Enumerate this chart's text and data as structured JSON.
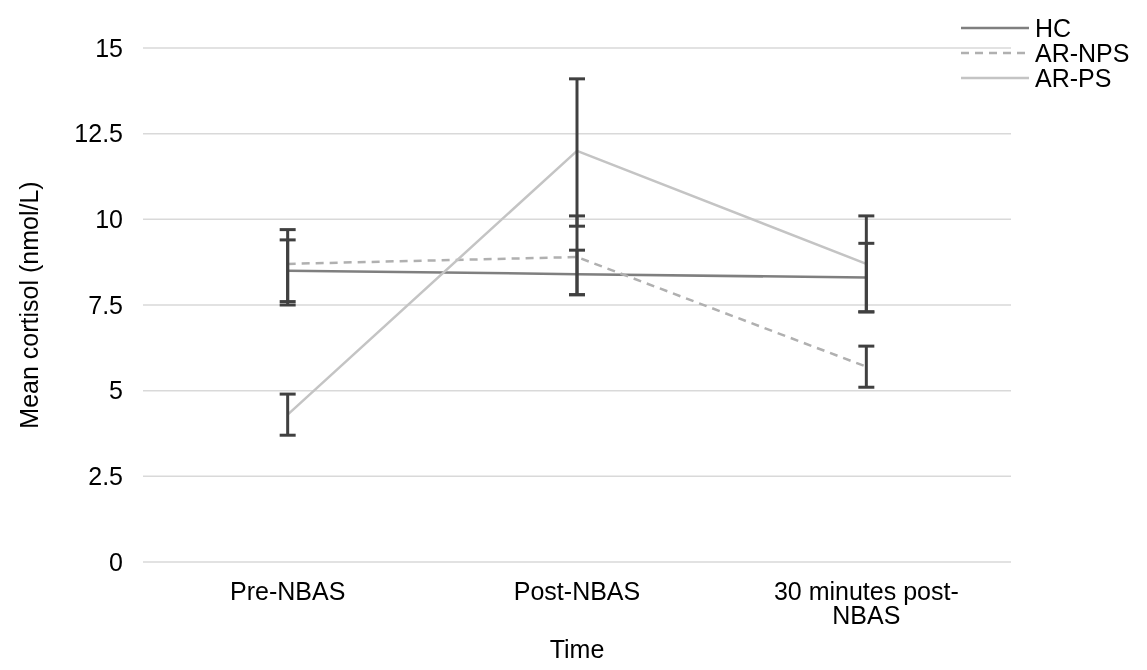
{
  "chart_data": {
    "type": "line",
    "xlabel": "Time",
    "ylabel": "Mean cortisol (nmol/L)",
    "categories": [
      "Pre-NBAS",
      "Post-NBAS",
      "30 minutes post-NBAS"
    ],
    "series": [
      {
        "name": "HC",
        "color": "#7f7f7f",
        "line_style": "solid",
        "values": [
          8.5,
          8.4,
          8.3
        ],
        "errors": [
          [
            7.6,
            9.4
          ],
          [
            7.8,
            9.1
          ],
          [
            7.3,
            9.3
          ]
        ]
      },
      {
        "name": "AR-NPS",
        "color": "#b0b0b0",
        "line_style": "dashed",
        "values": [
          8.7,
          8.9,
          5.7
        ],
        "errors": [
          [
            7.5,
            9.7
          ],
          [
            7.8,
            10.1
          ],
          [
            5.1,
            6.3
          ]
        ]
      },
      {
        "name": "AR-PS",
        "color": "#c4c4c4",
        "line_style": "solid",
        "values": [
          4.3,
          12.0,
          8.7
        ],
        "errors": [
          [
            3.7,
            4.9
          ],
          [
            9.8,
            14.1
          ],
          [
            7.3,
            10.1
          ]
        ]
      }
    ],
    "ylim": [
      0,
      15
    ],
    "yticks": [
      0,
      {
        "value": 2.5,
        "label": "2.5"
      },
      5,
      {
        "value": 7.5,
        "label": "7.5"
      },
      10,
      {
        "value": 12.5,
        "label": "12.5"
      },
      15
    ],
    "grid": "y",
    "legend": "top right",
    "marker": "none"
  }
}
